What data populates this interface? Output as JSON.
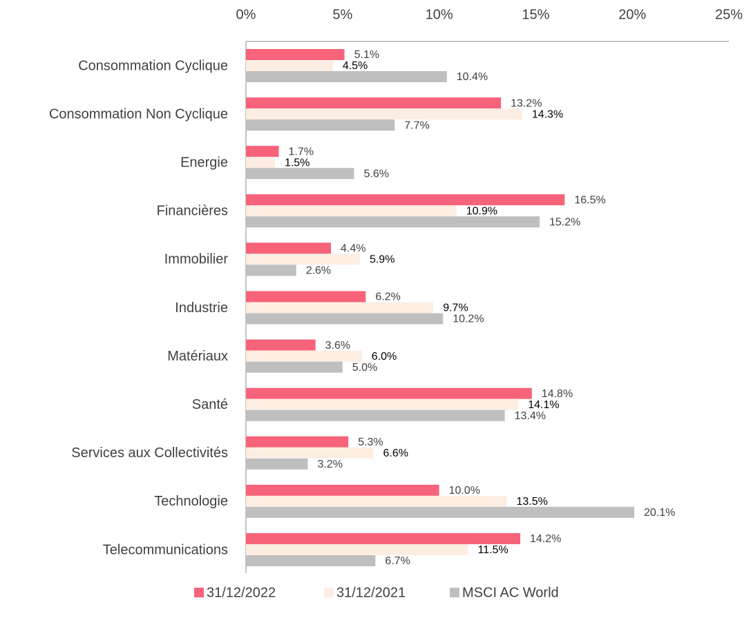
{
  "chart_data": {
    "type": "bar",
    "orientation": "horizontal",
    "categories": [
      "Consommation Cyclique",
      "Consommation Non Cyclique",
      "Energie",
      "Financières",
      "Immobilier",
      "Industrie",
      "Matériaux",
      "Santé",
      "Services aux Collectivités",
      "Technologie",
      "Telecommunications"
    ],
    "series": [
      {
        "name": "31/12/2022",
        "color": "#f7637a",
        "label_color": "#404040",
        "values": [
          5.1,
          13.2,
          1.7,
          16.5,
          4.4,
          6.2,
          3.6,
          14.8,
          5.3,
          10.0,
          14.2
        ],
        "value_labels": [
          "5.1%",
          "13.2%",
          "1.7%",
          "16.5%",
          "4.4%",
          "6.2%",
          "3.6%",
          "14.8%",
          "5.3%",
          "10.0%",
          "14.2%"
        ]
      },
      {
        "name": "31/12/2021",
        "color": "#fdeee4",
        "label_color": "#000000",
        "values": [
          4.5,
          14.3,
          1.5,
          10.9,
          5.9,
          9.7,
          6.0,
          14.1,
          6.6,
          13.5,
          11.5
        ],
        "value_labels": [
          "4.5%",
          "14.3%",
          "1.5%",
          "10.9%",
          "5.9%",
          "9.7%",
          "6.0%",
          "14.1%",
          "6.6%",
          "13.5%",
          "11.5%"
        ]
      },
      {
        "name": "MSCI AC World",
        "color": "#bfbfbf",
        "label_color": "#404040",
        "values": [
          10.4,
          7.7,
          5.6,
          15.2,
          2.6,
          10.2,
          5.0,
          13.4,
          3.2,
          20.1,
          6.7
        ],
        "value_labels": [
          "10.4%",
          "7.7%",
          "5.6%",
          "15.2%",
          "2.6%",
          "10.2%",
          "5.0%",
          "13.4%",
          "3.2%",
          "20.1%",
          "6.7%"
        ]
      }
    ],
    "xlim": [
      0,
      25
    ],
    "xticks": [
      {
        "value": 0,
        "label": "0%"
      },
      {
        "value": 5,
        "label": "5%"
      },
      {
        "value": 10,
        "label": "10%"
      },
      {
        "value": 15,
        "label": "15%"
      },
      {
        "value": 20,
        "label": "20%"
      },
      {
        "value": 25,
        "label": "25%"
      }
    ],
    "legend": "bottom"
  }
}
